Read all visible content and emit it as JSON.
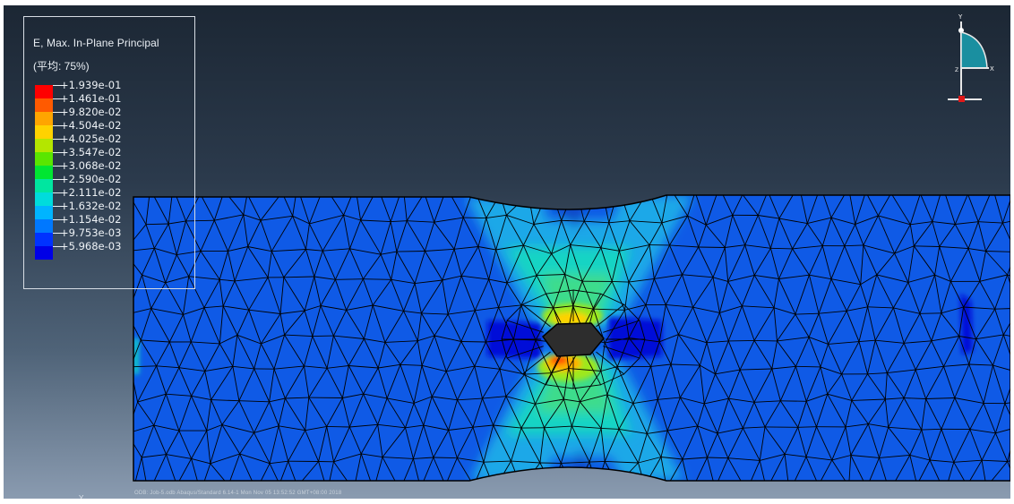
{
  "legend": {
    "title": "E, Max. In-Plane Principal",
    "subtitle": "(平均: 75%)",
    "entries": [
      {
        "label": "+1.939e-01",
        "color": "#ff0000"
      },
      {
        "label": "+1.461e-01",
        "color": "#ff5a00"
      },
      {
        "label": "+9.820e-02",
        "color": "#ffa500"
      },
      {
        "label": "+4.504e-02",
        "color": "#ffd200"
      },
      {
        "label": "+4.025e-02",
        "color": "#b4e600"
      },
      {
        "label": "+3.547e-02",
        "color": "#5ae600"
      },
      {
        "label": "+3.068e-02",
        "color": "#00e632"
      },
      {
        "label": "+2.590e-02",
        "color": "#00e6a0"
      },
      {
        "label": "+2.111e-02",
        "color": "#00dcdc"
      },
      {
        "label": "+1.632e-02",
        "color": "#00b4ff"
      },
      {
        "label": "+1.154e-02",
        "color": "#0078ff"
      },
      {
        "label": "+9.753e-03",
        "color": "#0032ff"
      },
      {
        "label": "+5.968e-03",
        "color": "#0000e6"
      }
    ]
  },
  "triad": {
    "axis_y": "Y",
    "axis_z": "Z",
    "axis_x": "X"
  },
  "status_bar": {
    "text": "ODB: Job-5.odb   Abaqus/Standard 6.14-1   Mon Nov 05 13:52:52 GMT+08:00 2018",
    "y_axis_glyph": "Y"
  },
  "colors": {
    "base_strain": "#0f5ae6",
    "hole": "#2d2d2d",
    "mesh_lines": "#000000"
  }
}
